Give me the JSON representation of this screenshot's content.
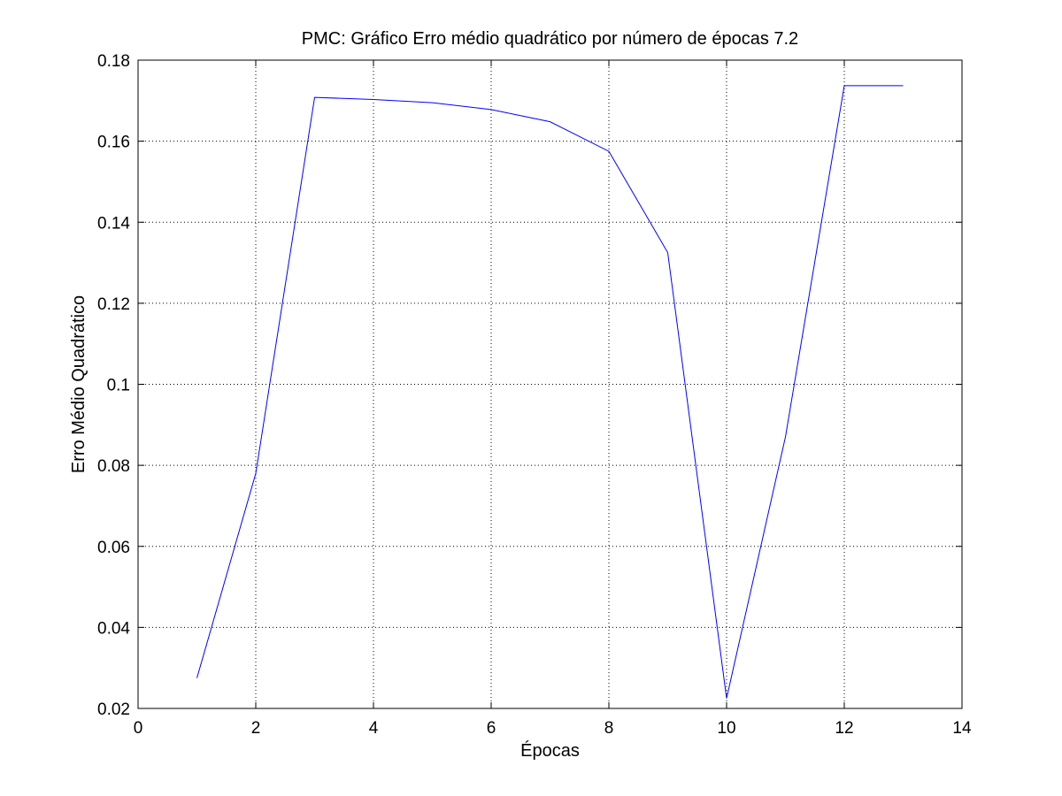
{
  "chart_data": {
    "type": "line",
    "title": "PMC: Gráfico Erro médio quadrático por número de épocas 7.2",
    "xlabel": "Épocas",
    "ylabel": "Erro Médio Quadrático",
    "xlim": [
      0,
      14
    ],
    "ylim": [
      0.02,
      0.18
    ],
    "xticks": [
      0,
      2,
      4,
      6,
      8,
      10,
      12,
      14
    ],
    "xtick_labels": [
      "0",
      "2",
      "4",
      "6",
      "8",
      "10",
      "12",
      "14"
    ],
    "yticks": [
      0.02,
      0.04,
      0.06,
      0.08,
      0.1,
      0.12,
      0.14,
      0.16,
      0.18
    ],
    "ytick_labels": [
      "0.02",
      "0.04",
      "0.06",
      "0.08",
      "0.1",
      "0.12",
      "0.14",
      "0.16",
      "0.18"
    ],
    "grid": true,
    "legend": false,
    "series": [
      {
        "color": "#0000ff",
        "x": [
          1,
          2,
          3,
          4,
          5,
          6,
          7,
          8,
          9,
          10,
          11,
          12,
          13
        ],
        "y": [
          0.0275,
          0.078,
          0.1708,
          0.1703,
          0.1695,
          0.1678,
          0.1648,
          0.1575,
          0.1325,
          0.0225,
          0.087,
          0.1737,
          0.1737
        ]
      }
    ]
  }
}
